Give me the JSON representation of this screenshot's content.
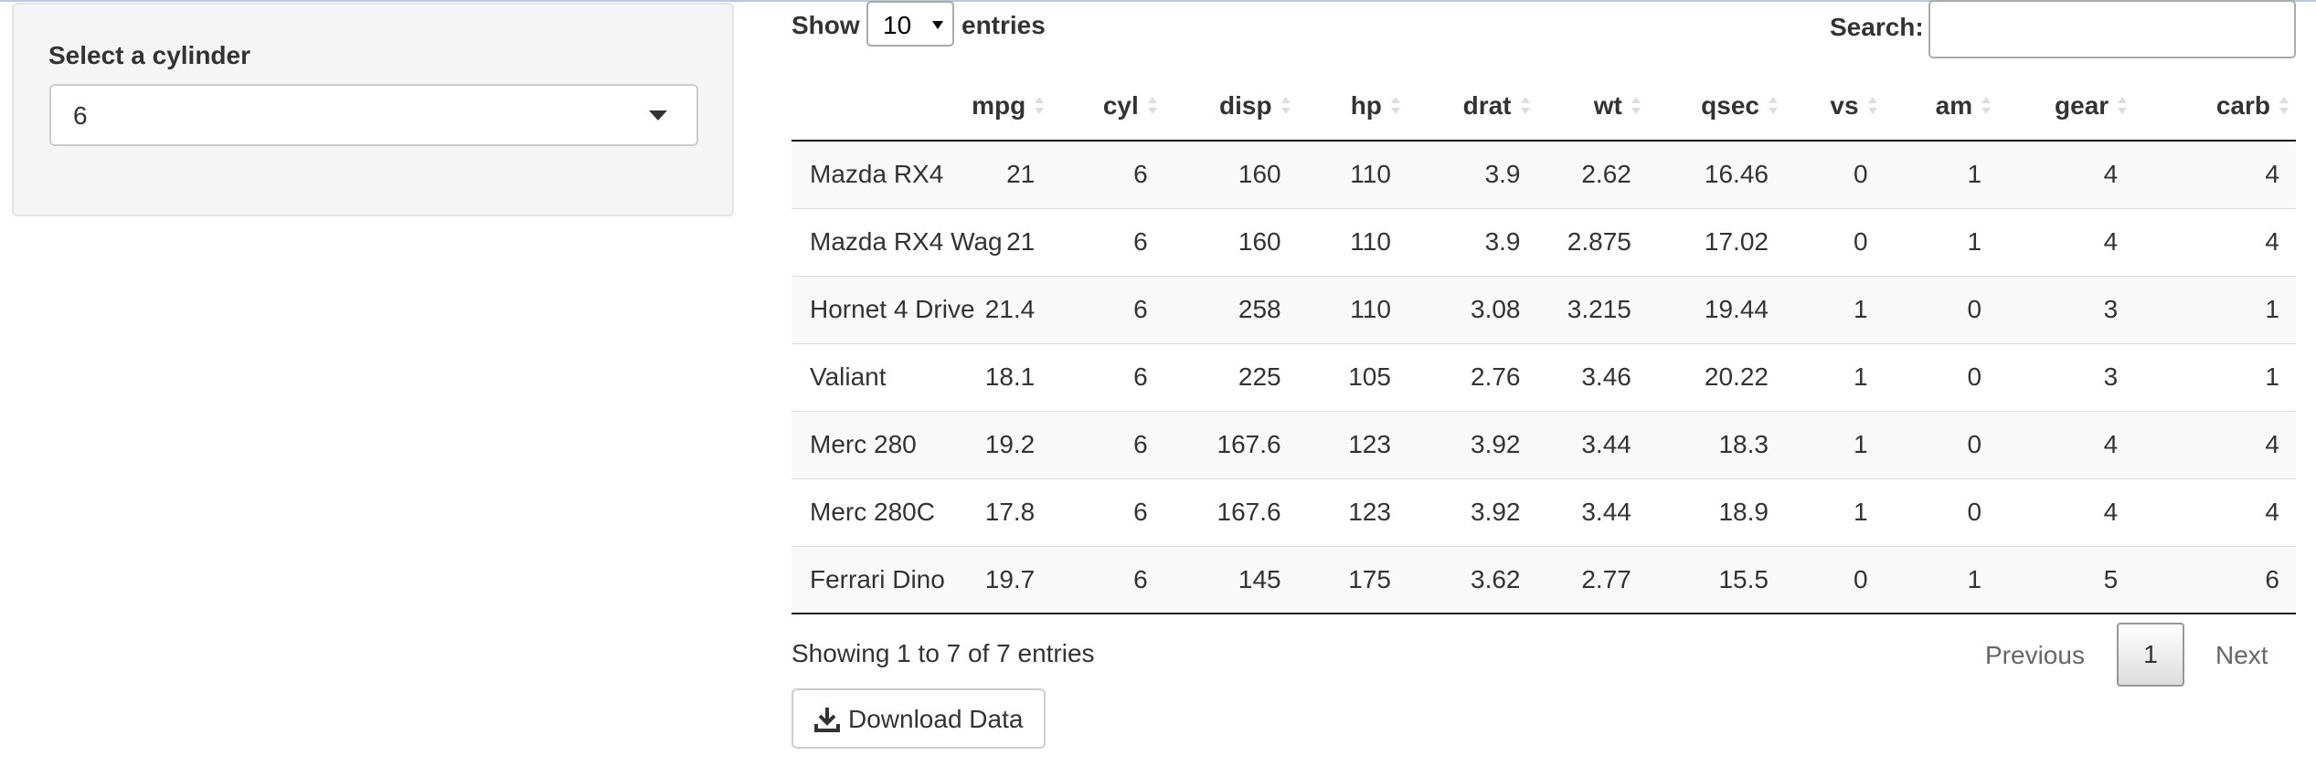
{
  "sidebar": {
    "label": "Select a cylinder",
    "selected": "6"
  },
  "table_controls": {
    "show_label": "Show",
    "entries_value": "10",
    "entries_label": "entries",
    "search_label": "Search:",
    "search_value": ""
  },
  "table": {
    "columns": [
      "",
      "mpg",
      "cyl",
      "disp",
      "hp",
      "drat",
      "wt",
      "qsec",
      "vs",
      "am",
      "gear",
      "carb"
    ],
    "rows": [
      [
        "Mazda RX4",
        "21",
        "6",
        "160",
        "110",
        "3.9",
        "2.62",
        "16.46",
        "0",
        "1",
        "4",
        "4"
      ],
      [
        "Mazda RX4 Wag",
        "21",
        "6",
        "160",
        "110",
        "3.9",
        "2.875",
        "17.02",
        "0",
        "1",
        "4",
        "4"
      ],
      [
        "Hornet 4 Drive",
        "21.4",
        "6",
        "258",
        "110",
        "3.08",
        "3.215",
        "19.44",
        "1",
        "0",
        "3",
        "1"
      ],
      [
        "Valiant",
        "18.1",
        "6",
        "225",
        "105",
        "2.76",
        "3.46",
        "20.22",
        "1",
        "0",
        "3",
        "1"
      ],
      [
        "Merc 280",
        "19.2",
        "6",
        "167.6",
        "123",
        "3.92",
        "3.44",
        "18.3",
        "1",
        "0",
        "4",
        "4"
      ],
      [
        "Merc 280C",
        "17.8",
        "6",
        "167.6",
        "123",
        "3.92",
        "3.44",
        "18.9",
        "1",
        "0",
        "4",
        "4"
      ],
      [
        "Ferrari Dino",
        "19.7",
        "6",
        "145",
        "175",
        "3.62",
        "2.77",
        "15.5",
        "0",
        "1",
        "5",
        "6"
      ]
    ]
  },
  "footer": {
    "info": "Showing 1 to 7 of 7 entries",
    "previous": "Previous",
    "current_page": "1",
    "next": "Next"
  },
  "download": {
    "label": "Download Data",
    "icon": "download-icon"
  }
}
